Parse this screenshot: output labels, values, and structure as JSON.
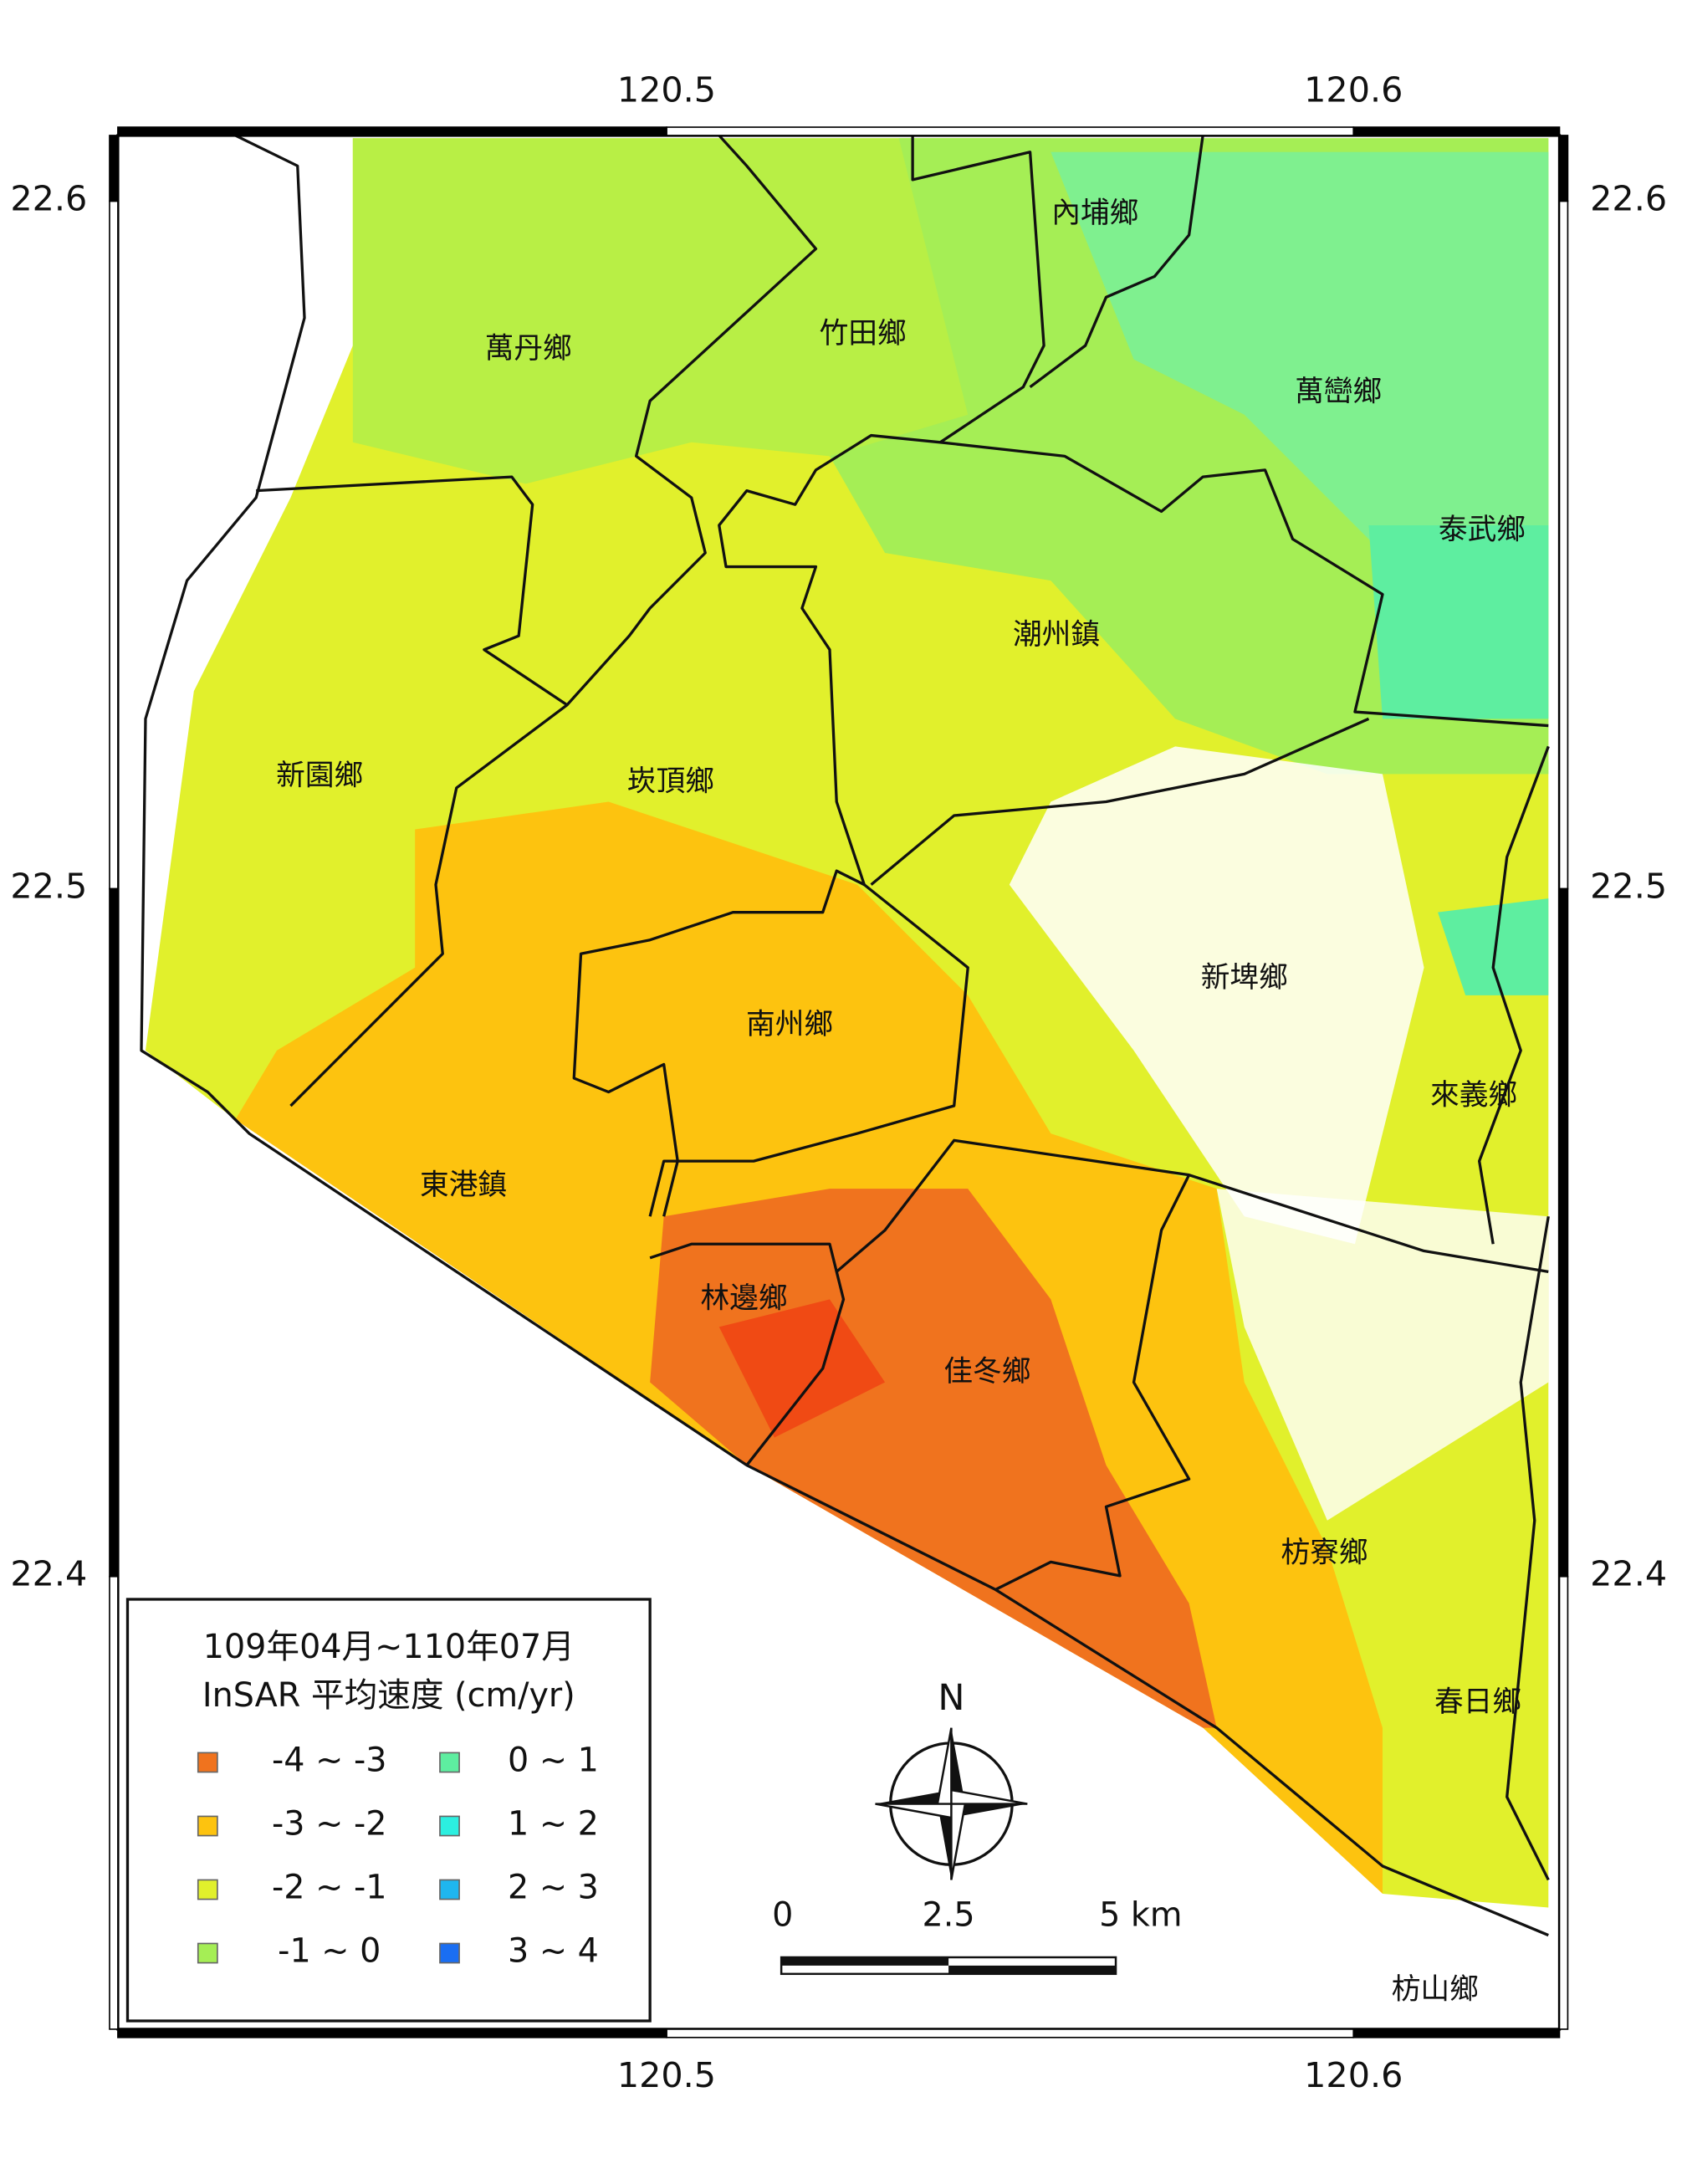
{
  "map": {
    "lon_ticks": [
      120.5,
      120.6
    ],
    "lat_ticks": [
      22.6,
      22.5,
      22.4
    ],
    "townships": [
      "萬丹鄉",
      "竹田鄉",
      "內埔鄉",
      "萬巒鄉",
      "泰武鄉",
      "潮州鎮",
      "新園鄉",
      "崁頂鄉",
      "南州鄉",
      "新埤鄉",
      "來義鄉",
      "東港鎮",
      "林邊鄉",
      "佳冬鄉",
      "枋寮鄉",
      "春日鄉",
      "枋山鄉"
    ],
    "legend": {
      "title": [
        "109年04月~110年07月",
        "InSAR 平均速度 (cm/yr)"
      ],
      "entries": [
        {
          "label": "-4 ~ -3",
          "color": "#f0731e"
        },
        {
          "label": "-3 ~ -2",
          "color": "#fdc30f"
        },
        {
          "label": "-2 ~ -1",
          "color": "#e1f02c"
        },
        {
          "label": "-1 ~ 0",
          "color": "#a5ee55"
        },
        {
          "label": "0 ~ 1",
          "color": "#5eeea0"
        },
        {
          "label": "1 ~ 2",
          "color": "#2cefe0"
        },
        {
          "label": "2 ~ 3",
          "color": "#1fb6ef"
        },
        {
          "label": "3 ~ 4",
          "color": "#1a6ef2"
        }
      ]
    },
    "north_label": "N",
    "scale_bar": {
      "labels": [
        "0",
        "2.5",
        "5 km"
      ]
    }
  }
}
